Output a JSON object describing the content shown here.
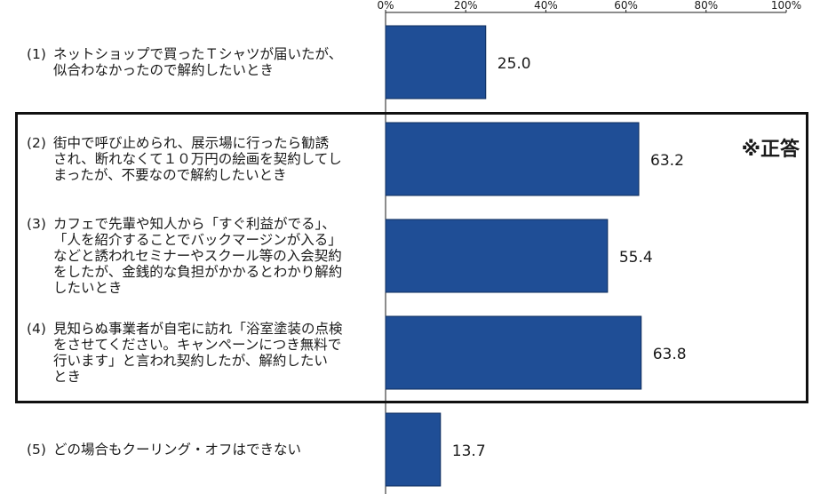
{
  "chart_data": {
    "type": "bar",
    "orientation": "horizontal",
    "x_ticks": [
      "0%",
      "20%",
      "40%",
      "60%",
      "80%",
      "100%"
    ],
    "xlim": [
      0,
      100
    ],
    "bar_color": "#1f4e96",
    "grid": false,
    "annotation": "※正答",
    "categories": [
      {
        "num": "(1)",
        "lines": [
          "ネットショップで買ったＴシャツが届いたが、",
          "似合わなかったので解約したいとき"
        ],
        "value": 25.0,
        "label": "25.0"
      },
      {
        "num": "(2)",
        "lines": [
          "街中で呼び止められ、展示場に行ったら勧誘",
          "され、断れなくて１０万円の絵画を契約してし",
          "まったが、不要なので解約したいとき"
        ],
        "value": 63.2,
        "label": "63.2"
      },
      {
        "num": "(3)",
        "lines": [
          "カフェで先輩や知人から「すぐ利益がでる」、",
          "「人を紹介することでバックマージンが入る」",
          "などと誘われセミナーやスクール等の入会契約",
          "をしたが、金銭的な負担がかかるとわかり解約",
          "したいとき"
        ],
        "value": 55.4,
        "label": "55.4"
      },
      {
        "num": "(4)",
        "lines": [
          "見知らぬ事業者が自宅に訪れ「浴室塗装の点検",
          "をさせてください。キャンペーンにつき無料で",
          "行います」と言われ契約したが、解約したい",
          "とき"
        ],
        "value": 63.8,
        "label": "63.8"
      },
      {
        "num": "(5)",
        "lines": [
          "どの場合もクーリング・オフはできない"
        ],
        "value": 13.7,
        "label": "13.7"
      }
    ]
  }
}
